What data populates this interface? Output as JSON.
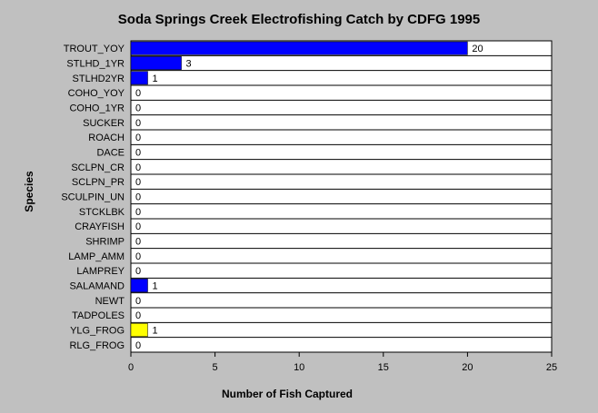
{
  "chart_data": {
    "type": "bar",
    "orientation": "horizontal",
    "title": "Soda Springs Creek Electrofishing Catch by CDFG 1995",
    "xlabel": "Number of Fish Captured",
    "ylabel": "Species",
    "xlim": [
      0,
      25
    ],
    "xticks": [
      "0",
      "5",
      "10",
      "15",
      "20",
      "25"
    ],
    "grid": "horizontal lines between categories",
    "legend": "none",
    "categories": [
      "TROUT_YOY",
      "STLHD_1YR",
      "STLHD2YR",
      "COHO_YOY",
      "COHO_1YR",
      "SUCKER",
      "ROACH",
      "DACE",
      "SCLPN_CR",
      "SCLPN_PR",
      "SCULPIN_UN",
      "STCKLBK",
      "CRAYFISH",
      "SHRIMP",
      "LAMP_AMM",
      "LAMPREY",
      "SALAMAND",
      "NEWT",
      "TADPOLES",
      "YLG_FROG",
      "RLG_FROG"
    ],
    "values": [
      20,
      3,
      1,
      0,
      0,
      0,
      0,
      0,
      0,
      0,
      0,
      0,
      0,
      0,
      0,
      0,
      1,
      0,
      0,
      1,
      0
    ],
    "data_labels": [
      "20",
      "3",
      "1",
      "0",
      "0",
      "0",
      "0",
      "0",
      "0",
      "0",
      "0",
      "0",
      "0",
      "0",
      "0",
      "0",
      "1",
      "0",
      "0",
      "1",
      "0"
    ],
    "bar_colors": [
      "#0000ff",
      "#0000ff",
      "#0000ff",
      "#0000ff",
      "#0000ff",
      "#0000ff",
      "#0000ff",
      "#0000ff",
      "#0000ff",
      "#0000ff",
      "#0000ff",
      "#0000ff",
      "#0000ff",
      "#0000ff",
      "#0000ff",
      "#0000ff",
      "#0000ff",
      "#0000ff",
      "#0000ff",
      "#ffff00",
      "#0000ff"
    ],
    "colors": {
      "background": "#c0c0c0",
      "plot_background": "#ffffff",
      "grid": "#000000"
    }
  }
}
